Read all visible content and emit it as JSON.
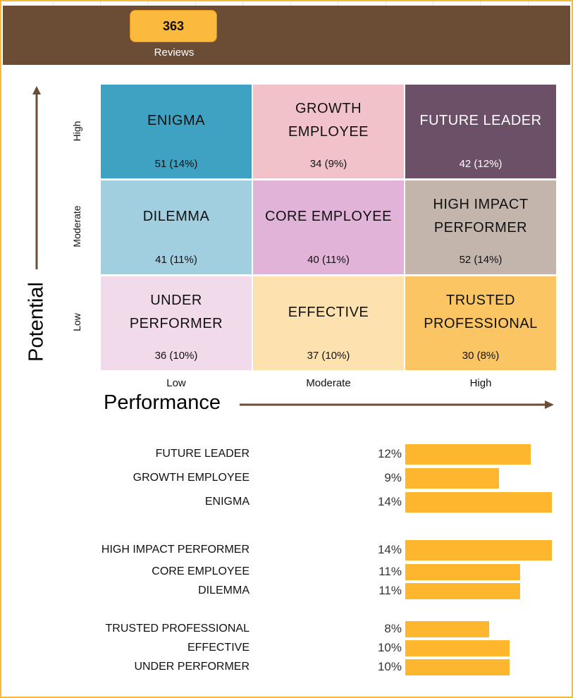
{
  "colors": {
    "border": "#f6b93a",
    "header": "#6b4c35",
    "badge": "#fbb93e",
    "bar": "#fdb62e"
  },
  "header": {
    "reviews_count": "363",
    "reviews_label": "Reviews"
  },
  "chart_data": [
    {
      "type": "heatmap",
      "title": "",
      "xlabel": "Performance",
      "ylabel": "Potential",
      "x_categories": [
        "Low",
        "Moderate",
        "High"
      ],
      "y_categories": [
        "High",
        "Moderate",
        "Low"
      ],
      "cells": [
        {
          "potential": "High",
          "performance": "Low",
          "name": "ENIGMA",
          "count": 51,
          "label": "51 (14%)",
          "color": "#3fa2c2",
          "text_color": "#111111"
        },
        {
          "potential": "High",
          "performance": "Moderate",
          "name": "GROWTH EMPLOYEE",
          "count": 34,
          "label": "34 (9%)",
          "color": "#f2c2ca",
          "text_color": "#111111"
        },
        {
          "potential": "High",
          "performance": "High",
          "name": "FUTURE LEADER",
          "count": 42,
          "label": "42 (12%)",
          "color": "#6b5068",
          "text_color": "#ffffff"
        },
        {
          "potential": "Moderate",
          "performance": "Low",
          "name": "DILEMMA",
          "count": 41,
          "label": "41 (11%)",
          "color": "#a1cfe0",
          "text_color": "#111111"
        },
        {
          "potential": "Moderate",
          "performance": "Moderate",
          "name": "CORE EMPLOYEE",
          "count": 40,
          "label": "40 (11%)",
          "color": "#e2b3d8",
          "text_color": "#111111"
        },
        {
          "potential": "Moderate",
          "performance": "High",
          "name": "HIGH IMPACT PERFORMER",
          "count": 52,
          "label": "52 (14%)",
          "color": "#c3b5ac",
          "text_color": "#111111"
        },
        {
          "potential": "Low",
          "performance": "Low",
          "name": "UNDER PERFORMER",
          "count": 36,
          "label": "36 (10%)",
          "color": "#f1dbeb",
          "text_color": "#111111"
        },
        {
          "potential": "Low",
          "performance": "Moderate",
          "name": "EFFECTIVE",
          "count": 37,
          "label": "37 (10%)",
          "color": "#fde2b0",
          "text_color": "#111111"
        },
        {
          "potential": "Low",
          "performance": "High",
          "name": "TRUSTED PROFESSIONAL",
          "count": 30,
          "label": "30 (8%)",
          "color": "#fcc563",
          "text_color": "#111111"
        }
      ]
    },
    {
      "type": "bar",
      "orientation": "horizontal",
      "categories": [
        "FUTURE LEADER",
        "GROWTH EMPLOYEE",
        "ENIGMA",
        "HIGH IMPACT PERFORMER",
        "CORE EMPLOYEE",
        "DILEMMA",
        "TRUSTED PROFESSIONAL",
        "EFFECTIVE",
        "UNDER PERFORMER"
      ],
      "values": [
        12,
        9,
        14,
        14,
        11,
        11,
        8,
        10,
        10
      ],
      "value_labels": [
        "12%",
        "9%",
        "14%",
        "14%",
        "11%",
        "11%",
        "8%",
        "10%",
        "10%"
      ],
      "xlim": [
        0,
        14.3
      ]
    }
  ]
}
